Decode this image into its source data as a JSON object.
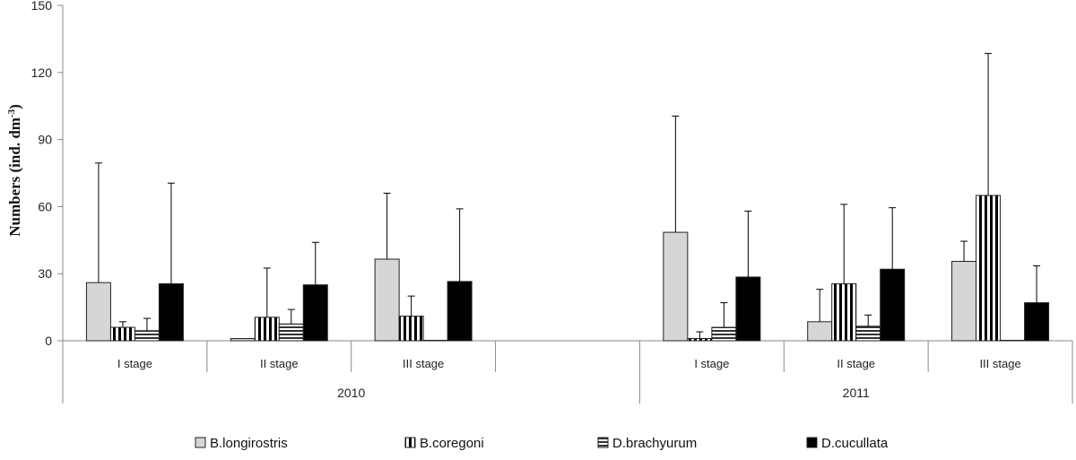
{
  "chart_data": {
    "type": "bar",
    "title": "",
    "ylabel": "Numbers (ind. dm",
    "ylabel_sup": "-3",
    "ylabel_suffix": ")",
    "ylim": [
      0,
      150
    ],
    "yticks": [
      0,
      30,
      60,
      90,
      120,
      150
    ],
    "groups": [
      {
        "label": "2010",
        "categories": [
          "I  stage",
          "II stage",
          "III stage",
          ""
        ]
      },
      {
        "label": "2011",
        "categories": [
          "I  stage",
          "II stage",
          "III stage"
        ]
      }
    ],
    "series": [
      {
        "name": "B.longirostris",
        "pattern": "light",
        "values": [
          26,
          1,
          36.5,
          null,
          48.5,
          8.5,
          35.5
        ],
        "errors": [
          79.5,
          1,
          66,
          null,
          100.5,
          23,
          44.5
        ]
      },
      {
        "name": "B.coregoni",
        "pattern": "vertical",
        "values": [
          6,
          10.5,
          11,
          null,
          1,
          25.5,
          65
        ],
        "errors": [
          8.5,
          32.5,
          20,
          null,
          4,
          61,
          128.5
        ]
      },
      {
        "name": "D.brachyurum",
        "pattern": "horizontal",
        "values": [
          4.5,
          7.5,
          0,
          null,
          6,
          6.5,
          0
        ],
        "errors": [
          10,
          14,
          null,
          null,
          17,
          11.5,
          null
        ]
      },
      {
        "name": "D.cucullata",
        "pattern": "solid",
        "values": [
          25.5,
          25,
          26.5,
          null,
          28.5,
          32,
          17
        ],
        "errors": [
          70.5,
          44,
          59,
          null,
          58,
          59.5,
          33.5
        ]
      }
    ],
    "legend_position": "bottom"
  }
}
